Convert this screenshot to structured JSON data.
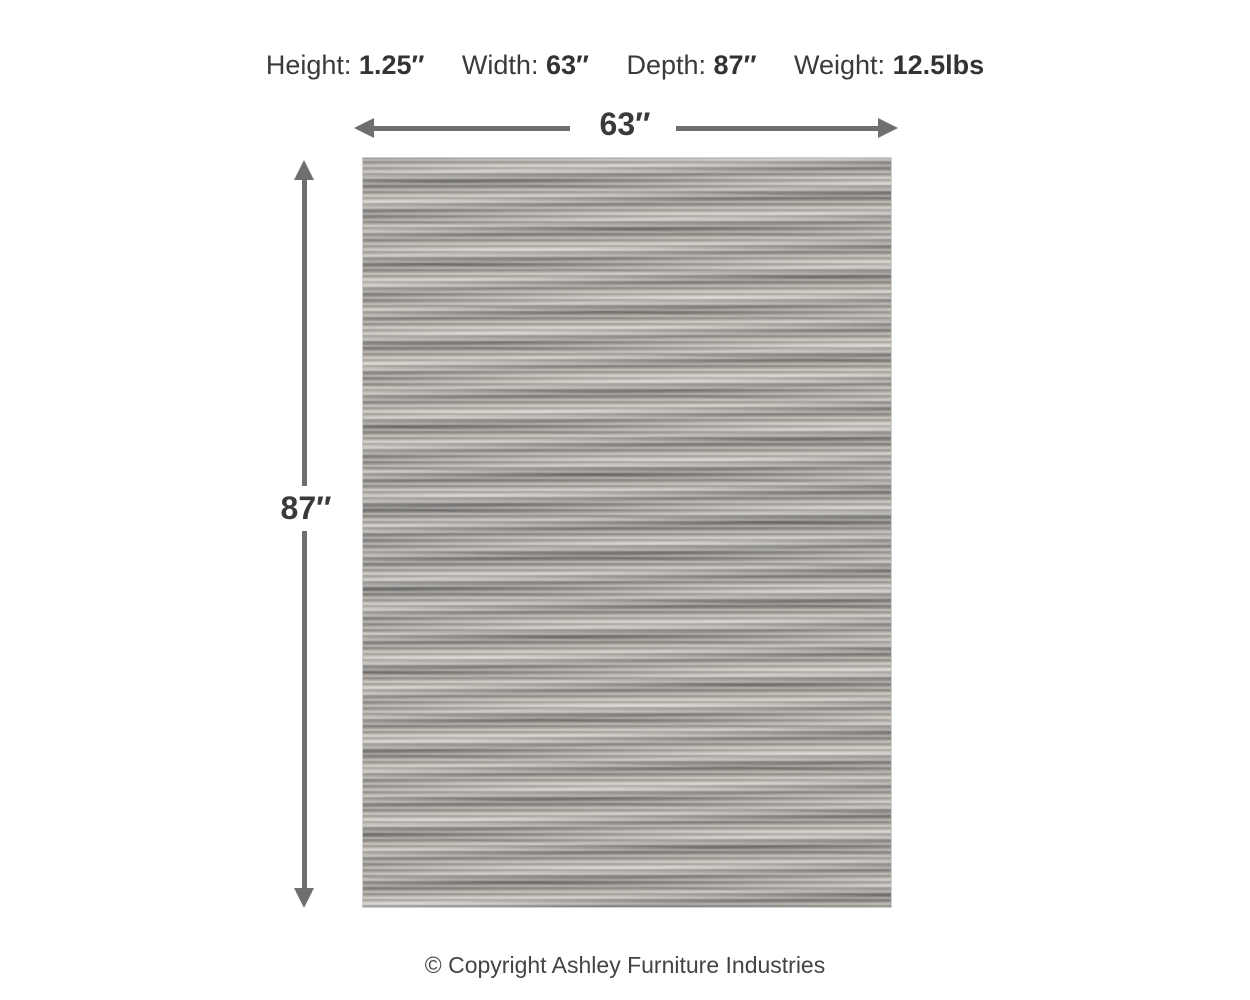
{
  "specs": [
    {
      "label": "Height:",
      "value": "1.25″"
    },
    {
      "label": "Width:",
      "value": "63″"
    },
    {
      "label": "Depth:",
      "value": "87″"
    },
    {
      "label": "Weight:",
      "value": "12.5lbs"
    }
  ],
  "dimensions": {
    "width_label": "63″",
    "height_label": "87″"
  },
  "colors": {
    "arrow": "#6f6f6f",
    "text": "#3a3a3a"
  },
  "footer": {
    "copyright": "© Copyright Ashley Furniture Industries"
  }
}
